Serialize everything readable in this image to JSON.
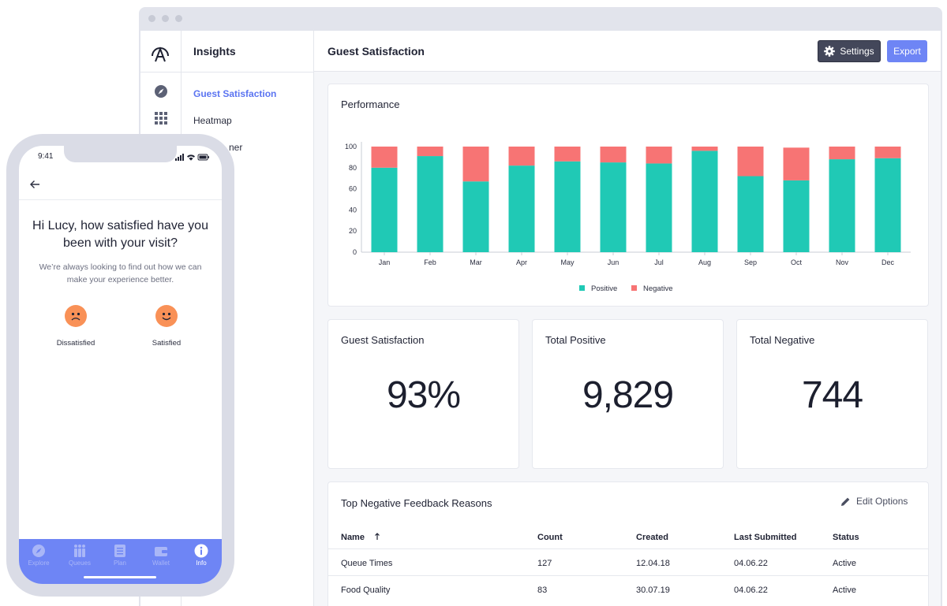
{
  "window": {
    "dots": [
      "",
      "",
      ""
    ]
  },
  "sidebar": {
    "title": "Insights",
    "items": [
      {
        "label": "Guest Satisfaction",
        "active": true
      },
      {
        "label": "Heatmap",
        "active": false
      },
      {
        "label": "ner",
        "active": false
      }
    ]
  },
  "header": {
    "title": "Guest Satisfaction",
    "settings_label": "Settings",
    "export_label": "Export"
  },
  "performance": {
    "title": "Performance",
    "legend": [
      {
        "label": "Positive",
        "color": "#20c9b5"
      },
      {
        "label": "Negative",
        "color": "#f77474"
      }
    ]
  },
  "chart_data": {
    "type": "bar",
    "stacked": true,
    "categories": [
      "Jan",
      "Feb",
      "Mar",
      "Apr",
      "May",
      "Jun",
      "Jul",
      "Aug",
      "Sep",
      "Oct",
      "Nov",
      "Dec"
    ],
    "series": [
      {
        "name": "Positive",
        "color": "#20c9b5",
        "values": [
          80,
          91,
          67,
          82,
          86,
          85,
          84,
          96,
          72,
          68,
          88,
          89
        ]
      },
      {
        "name": "Negative",
        "color": "#f77474",
        "values": [
          20,
          9,
          33,
          18,
          14,
          15,
          16,
          4,
          28,
          31,
          12,
          11
        ]
      }
    ],
    "ylim": [
      0,
      100
    ],
    "yticks": [
      0,
      20,
      40,
      60,
      80,
      100
    ],
    "title": "Performance",
    "xlabel": "",
    "ylabel": "",
    "legend_position": "bottom"
  },
  "stats": [
    {
      "title": "Guest Satisfaction",
      "value": "93%"
    },
    {
      "title": "Total Positive",
      "value": "9,829"
    },
    {
      "title": "Total Negative",
      "value": "744"
    }
  ],
  "feedback": {
    "title": "Top Negative Feedback Reasons",
    "edit_label": "Edit Options",
    "columns": [
      "Name",
      "Count",
      "Created",
      "Last Submitted",
      "Status"
    ],
    "sort_icon": "arrow-up-icon",
    "rows": [
      [
        "Queue Times",
        "127",
        "12.04.18",
        "04.06.22",
        "Active"
      ],
      [
        "Food Quality",
        "83",
        "30.07.19",
        "04.06.22",
        "Active"
      ]
    ]
  },
  "phone": {
    "time": "9:41",
    "question": "Hi Lucy, how satisfied have you been with your visit?",
    "subtext": "We’re always looking to find out how we can make your experience better.",
    "options": [
      {
        "label": "Dissatisfied",
        "icon": "sad-face-icon"
      },
      {
        "label": "Satisfied",
        "icon": "happy-face-icon"
      }
    ],
    "tabs": [
      {
        "label": "Explore",
        "icon": "compass-icon",
        "active": false
      },
      {
        "label": "Queues",
        "icon": "people-icon",
        "active": false
      },
      {
        "label": "Plan",
        "icon": "list-icon",
        "active": false
      },
      {
        "label": "Wallet",
        "icon": "wallet-icon",
        "active": false
      },
      {
        "label": "Info",
        "icon": "info-icon",
        "active": true
      }
    ]
  }
}
